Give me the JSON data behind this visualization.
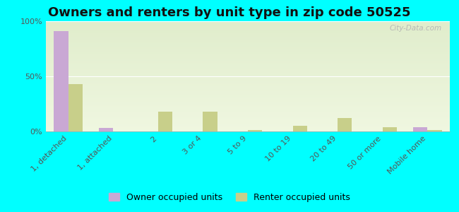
{
  "title": "Owners and renters by unit type in zip code 50525",
  "categories": [
    "1, detached",
    "1, attached",
    "2",
    "3 or 4",
    "5 to 9",
    "10 to 19",
    "20 to 49",
    "50 or more",
    "Mobile home"
  ],
  "owner_values": [
    91,
    3,
    0,
    0,
    0,
    0,
    0,
    0,
    4
  ],
  "renter_values": [
    43,
    0,
    18,
    18,
    1,
    5,
    12,
    4,
    1
  ],
  "owner_color": "#c9a8d4",
  "renter_color": "#c8cf8a",
  "background_color": "#00ffff",
  "ylim": [
    0,
    100
  ],
  "yticks": [
    0,
    50,
    100
  ],
  "ytick_labels": [
    "0%",
    "50%",
    "100%"
  ],
  "watermark": "City-Data.com",
  "legend_owner": "Owner occupied units",
  "legend_renter": "Renter occupied units",
  "bar_width": 0.32,
  "title_fontsize": 13,
  "tick_fontsize": 8
}
